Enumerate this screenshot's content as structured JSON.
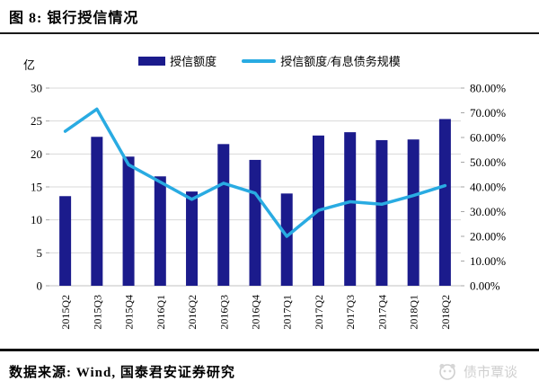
{
  "title": "图 8: 银行授信情况",
  "legend": [
    {
      "label": "授信额度",
      "type": "bar",
      "color": "#1b1b8c"
    },
    {
      "label": "授信额度/有息债务规模",
      "type": "line",
      "color": "#29abe2"
    }
  ],
  "chart_data": {
    "type": "bar+line combo",
    "categories": [
      "2015Q2",
      "2015Q3",
      "2015Q4",
      "2016Q1",
      "2016Q2",
      "2016Q3",
      "2016Q4",
      "2017Q1",
      "2017Q2",
      "2017Q3",
      "2017Q4",
      "2018Q1",
      "2018Q2"
    ],
    "series": [
      {
        "name": "授信额度",
        "type": "bar",
        "axis": "left",
        "unit": "亿",
        "color": "#1b1b8c",
        "values": [
          13.6,
          22.6,
          19.6,
          16.6,
          14.3,
          21.5,
          19.1,
          14.0,
          22.8,
          23.3,
          22.1,
          22.2,
          25.3
        ]
      },
      {
        "name": "授信额度/有息债务规模",
        "type": "line",
        "axis": "right",
        "unit": "%",
        "color": "#29abe2",
        "values": [
          62.5,
          71.5,
          49.0,
          42.0,
          35.0,
          41.5,
          37.5,
          20.0,
          30.5,
          34.0,
          33.0,
          36.5,
          40.5
        ]
      }
    ],
    "left_axis": {
      "label": "亿",
      "min": 0,
      "max": 30,
      "tick_step": 5,
      "ticks": [
        0,
        5,
        10,
        15,
        20,
        25,
        30
      ]
    },
    "right_axis": {
      "min": 0,
      "max": 80,
      "tick_step": 10,
      "tick_labels_top_to_bottom": [
        "80.00%",
        "70.00%",
        "60.00%",
        "50.00%",
        "40.00%",
        "30.00%",
        "20.00%",
        "10.00%",
        "0.00%"
      ]
    },
    "grid": "horizontal",
    "legend_position": "top"
  },
  "footer": {
    "source": "数据来源: Wind, 国泰君安证券研究",
    "watermark": "债市覃谈"
  },
  "colors": {
    "bar": "#1b1b8c",
    "line": "#29abe2",
    "grid": "#d9d9d9",
    "baseline": "#c0c0c0",
    "tick": "#a6a6a6",
    "watermark": "#cfcfcf"
  }
}
